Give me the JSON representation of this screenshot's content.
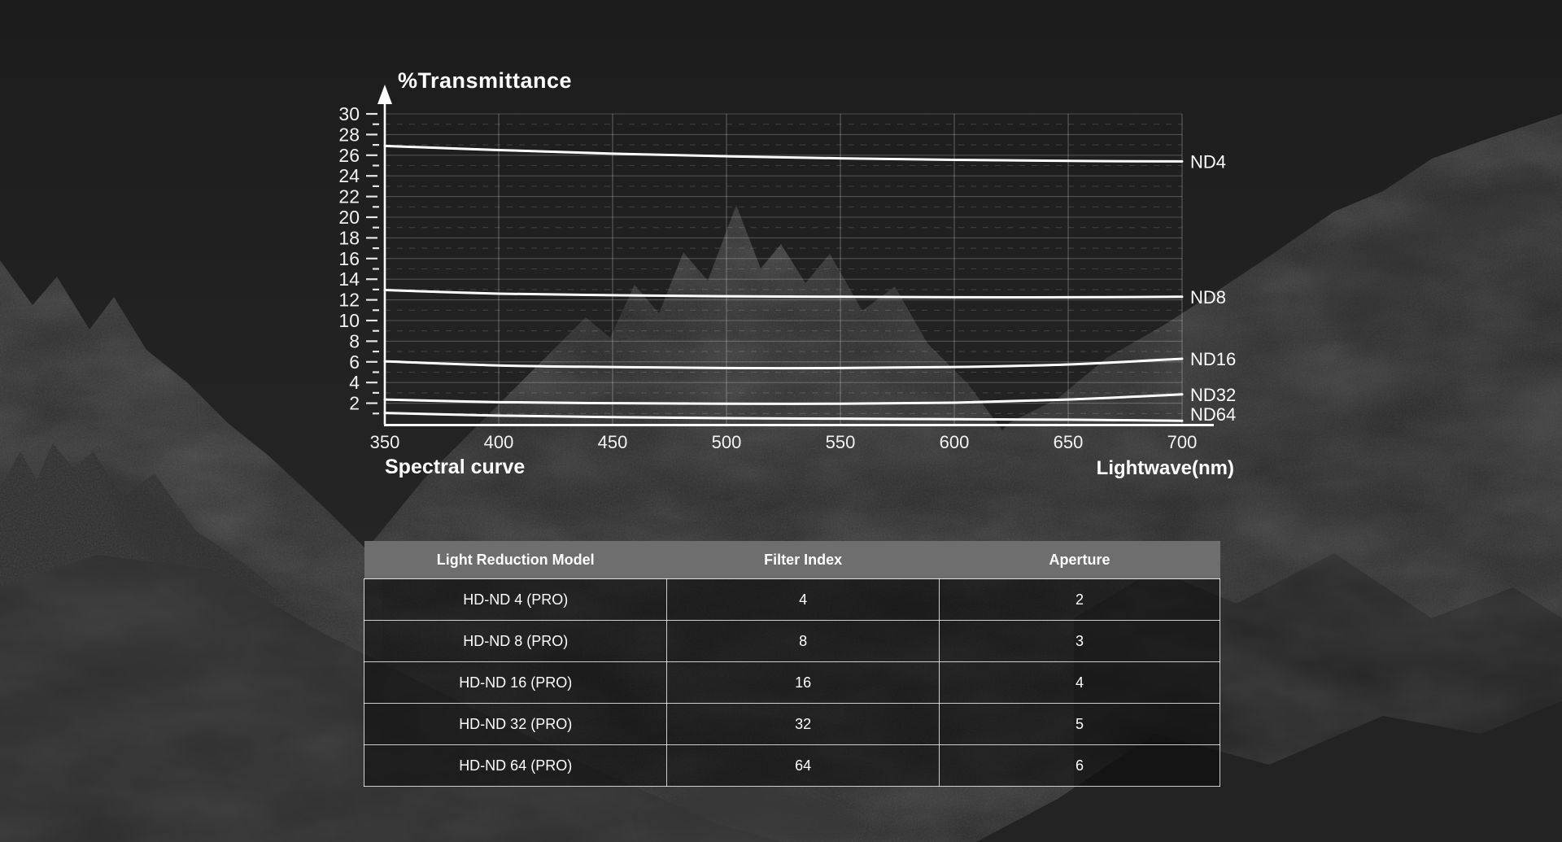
{
  "page": {
    "background_color": "#1e1e1e",
    "text_color": "#ffffff"
  },
  "chart_data": {
    "type": "line",
    "title": "%Transmittance",
    "footer_label": "Spectral curve",
    "xlabel": "Lightwave(nm)",
    "x": [
      350,
      400,
      450,
      500,
      550,
      600,
      650,
      700
    ],
    "xticks": [
      350,
      400,
      450,
      500,
      550,
      600,
      650,
      700
    ],
    "yticks": [
      2,
      4,
      6,
      8,
      10,
      12,
      14,
      16,
      18,
      20,
      22,
      24,
      26,
      28,
      30
    ],
    "xlim": [
      350,
      700
    ],
    "ylim": [
      0,
      30
    ],
    "grid": "solid lines at even %, dashed lines at odd %",
    "legend_position": "right edge of lines",
    "line_color": "#ffffff",
    "series": [
      {
        "name": "ND4",
        "values": [
          26.9,
          26.5,
          26.15,
          25.9,
          25.7,
          25.55,
          25.45,
          25.4
        ]
      },
      {
        "name": "ND8",
        "values": [
          12.95,
          12.6,
          12.45,
          12.35,
          12.3,
          12.25,
          12.25,
          12.3
        ]
      },
      {
        "name": "ND16",
        "values": [
          6.05,
          5.65,
          5.5,
          5.4,
          5.4,
          5.5,
          5.75,
          6.3
        ]
      },
      {
        "name": "ND32",
        "values": [
          2.35,
          2.1,
          2.0,
          1.95,
          1.95,
          2.05,
          2.35,
          2.85
        ]
      },
      {
        "name": "ND64",
        "values": [
          1.05,
          0.8,
          0.65,
          0.55,
          0.5,
          0.45,
          0.4,
          0.3
        ]
      }
    ]
  },
  "table": {
    "header_bg": "#6e6e6e",
    "headers": [
      "Light Reduction Model",
      "Filter Index",
      "Aperture"
    ],
    "rows": [
      [
        "HD-ND 4 (PRO)",
        "4",
        "2"
      ],
      [
        "HD-ND 8 (PRO)",
        "8",
        "3"
      ],
      [
        "HD-ND 16 (PRO)",
        "16",
        "4"
      ],
      [
        "HD-ND 32 (PRO)",
        "32",
        "5"
      ],
      [
        "HD-ND 64 (PRO)",
        "64",
        "6"
      ]
    ]
  }
}
